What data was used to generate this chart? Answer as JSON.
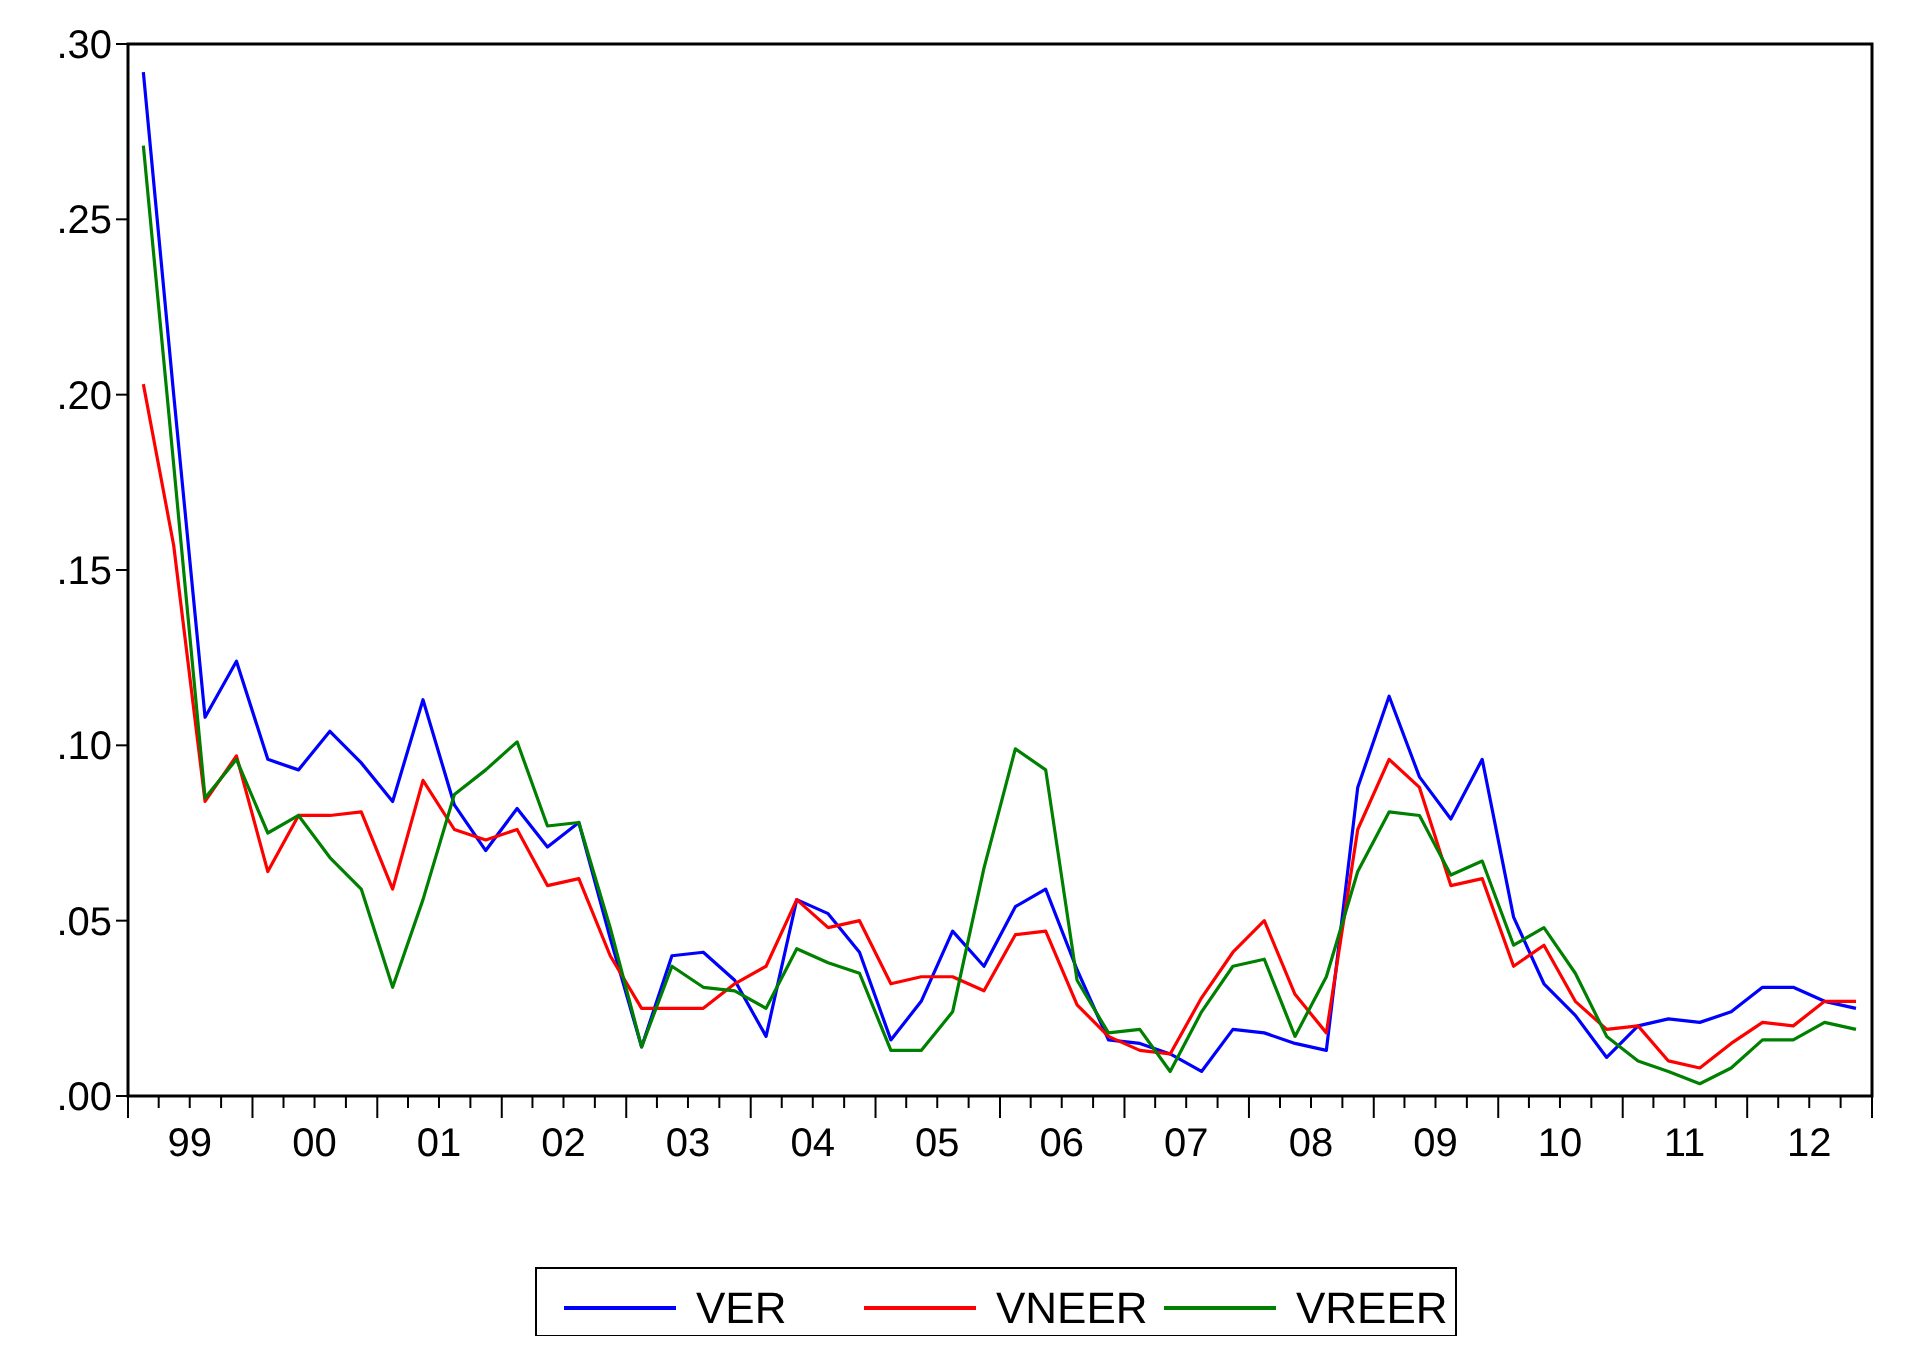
{
  "chart_data": {
    "type": "line",
    "legend": "bottom",
    "grid": false,
    "marker": "none",
    "line_style": "solid",
    "x": [
      "1999-02-15",
      "1999-05-15",
      "1999-08-15",
      "1999-11-15",
      "2000-02-15",
      "2000-05-15",
      "2000-08-15",
      "2000-11-15",
      "2001-02-15",
      "2001-05-15",
      "2001-08-15",
      "2001-11-15",
      "2002-02-15",
      "2002-05-15",
      "2002-08-15",
      "2002-11-15",
      "2003-02-15",
      "2003-05-15",
      "2003-08-15",
      "2003-11-15",
      "2004-02-15",
      "2004-05-15",
      "2004-08-15",
      "2004-11-15",
      "2005-02-15",
      "2005-05-15",
      "2005-08-15",
      "2005-11-15",
      "2006-02-15",
      "2006-05-15",
      "2006-08-15",
      "2006-11-15",
      "2007-02-15",
      "2007-05-15",
      "2007-08-15",
      "2007-11-15",
      "2008-02-15",
      "2008-05-15",
      "2008-08-15",
      "2008-11-15",
      "2009-02-15",
      "2009-05-15",
      "2009-08-15",
      "2009-11-15",
      "2010-02-15",
      "2010-05-15",
      "2010-08-15",
      "2010-11-15",
      "2011-02-15",
      "2011-05-15",
      "2011-08-15",
      "2011-11-15",
      "2012-02-15",
      "2012-05-15",
      "2012-08-15",
      "2012-11-15"
    ],
    "xlim": [
      "1999-01-01",
      "2013-01-01"
    ],
    "xticks": [
      {
        "value": "1999-01-01",
        "label": null
      },
      {
        "value": "1999-04-01",
        "label": null
      },
      {
        "value": "1999-07-01",
        "label": "99"
      },
      {
        "value": "1999-10-01",
        "label": null
      },
      {
        "value": "2000-01-01",
        "label": null
      },
      {
        "value": "2000-04-01",
        "label": null
      },
      {
        "value": "2000-07-01",
        "label": "00"
      },
      {
        "value": "2000-10-01",
        "label": null
      },
      {
        "value": "2001-01-01",
        "label": null
      },
      {
        "value": "2001-04-01",
        "label": null
      },
      {
        "value": "2001-07-01",
        "label": "01"
      },
      {
        "value": "2001-10-01",
        "label": null
      },
      {
        "value": "2002-01-01",
        "label": null
      },
      {
        "value": "2002-04-01",
        "label": null
      },
      {
        "value": "2002-07-01",
        "label": "02"
      },
      {
        "value": "2002-10-01",
        "label": null
      },
      {
        "value": "2003-01-01",
        "label": null
      },
      {
        "value": "2003-04-01",
        "label": null
      },
      {
        "value": "2003-07-01",
        "label": "03"
      },
      {
        "value": "2003-10-01",
        "label": null
      },
      {
        "value": "2004-01-01",
        "label": null
      },
      {
        "value": "2004-04-01",
        "label": null
      },
      {
        "value": "2004-07-01",
        "label": "04"
      },
      {
        "value": "2004-10-01",
        "label": null
      },
      {
        "value": "2005-01-01",
        "label": null
      },
      {
        "value": "2005-04-01",
        "label": null
      },
      {
        "value": "2005-07-01",
        "label": "05"
      },
      {
        "value": "2005-10-01",
        "label": null
      },
      {
        "value": "2006-01-01",
        "label": null
      },
      {
        "value": "2006-04-01",
        "label": null
      },
      {
        "value": "2006-07-01",
        "label": "06"
      },
      {
        "value": "2006-10-01",
        "label": null
      },
      {
        "value": "2007-01-01",
        "label": null
      },
      {
        "value": "2007-04-01",
        "label": null
      },
      {
        "value": "2007-07-01",
        "label": "07"
      },
      {
        "value": "2007-10-01",
        "label": null
      },
      {
        "value": "2008-01-01",
        "label": null
      },
      {
        "value": "2008-04-01",
        "label": null
      },
      {
        "value": "2008-07-01",
        "label": "08"
      },
      {
        "value": "2008-10-01",
        "label": null
      },
      {
        "value": "2009-01-01",
        "label": null
      },
      {
        "value": "2009-04-01",
        "label": null
      },
      {
        "value": "2009-07-01",
        "label": "09"
      },
      {
        "value": "2009-10-01",
        "label": null
      },
      {
        "value": "2010-01-01",
        "label": null
      },
      {
        "value": "2010-04-01",
        "label": null
      },
      {
        "value": "2010-07-01",
        "label": "10"
      },
      {
        "value": "2010-10-01",
        "label": null
      },
      {
        "value": "2011-01-01",
        "label": null
      },
      {
        "value": "2011-04-01",
        "label": null
      },
      {
        "value": "2011-07-01",
        "label": "11"
      },
      {
        "value": "2011-10-01",
        "label": null
      },
      {
        "value": "2012-01-01",
        "label": null
      },
      {
        "value": "2012-04-01",
        "label": null
      },
      {
        "value": "2012-07-01",
        "label": "12"
      },
      {
        "value": "2012-10-01",
        "label": null
      },
      {
        "value": "2013-01-01",
        "label": null
      }
    ],
    "ylim": [
      0,
      0.3
    ],
    "yticks": [
      {
        "value": 0,
        "label": ".00"
      },
      {
        "value": 0.05,
        "label": ".05"
      },
      {
        "value": 0.1,
        "label": ".10"
      },
      {
        "value": 0.15,
        "label": ".15"
      },
      {
        "value": 0.2,
        "label": ".20"
      },
      {
        "value": 0.25,
        "label": ".25"
      },
      {
        "value": 0.3,
        "label": ".30"
      }
    ],
    "series": [
      {
        "name": "VER",
        "color": "#0000ff",
        "values": [
          0.292,
          0.2,
          0.108,
          0.124,
          0.096,
          0.093,
          0.104,
          0.095,
          0.084,
          0.113,
          0.083,
          0.07,
          0.082,
          0.071,
          0.078,
          0.045,
          0.014,
          0.04,
          0.041,
          0.033,
          0.017,
          0.056,
          0.052,
          0.041,
          0.016,
          0.027,
          0.047,
          0.037,
          0.054,
          0.059,
          0.036,
          0.016,
          0.015,
          0.012,
          0.007,
          0.019,
          0.018,
          0.015,
          0.013,
          0.088,
          0.114,
          0.091,
          0.079,
          0.096,
          0.051,
          0.032,
          0.023,
          0.011,
          0.02,
          0.022,
          0.021,
          0.024,
          0.031,
          0.031,
          0.027,
          0.025
        ]
      },
      {
        "name": "VNEER",
        "color": "#ff0000",
        "values": [
          0.203,
          0.157,
          0.084,
          0.097,
          0.064,
          0.08,
          0.08,
          0.081,
          0.059,
          0.09,
          0.076,
          0.073,
          0.076,
          0.06,
          0.062,
          0.04,
          0.025,
          0.025,
          0.025,
          0.032,
          0.037,
          0.056,
          0.048,
          0.05,
          0.032,
          0.034,
          0.034,
          0.03,
          0.046,
          0.047,
          0.026,
          0.017,
          0.013,
          0.012,
          0.028,
          0.041,
          0.05,
          0.029,
          0.018,
          0.076,
          0.096,
          0.088,
          0.06,
          0.062,
          0.037,
          0.043,
          0.027,
          0.019,
          0.02,
          0.01,
          0.008,
          0.015,
          0.021,
          0.02,
          0.027,
          0.027
        ]
      },
      {
        "name": "VREER",
        "color": "#008000",
        "values": [
          0.271,
          0.18,
          0.085,
          0.096,
          0.075,
          0.08,
          0.068,
          0.059,
          0.031,
          0.056,
          0.086,
          0.093,
          0.101,
          0.077,
          0.078,
          0.048,
          0.014,
          0.037,
          0.031,
          0.03,
          0.025,
          0.042,
          0.038,
          0.035,
          0.013,
          0.013,
          0.024,
          0.065,
          0.099,
          0.093,
          0.033,
          0.018,
          0.019,
          0.007,
          0.024,
          0.037,
          0.039,
          0.017,
          0.034,
          0.064,
          0.081,
          0.08,
          0.063,
          0.067,
          0.043,
          0.048,
          0.035,
          0.017,
          0.01,
          0.007,
          0.0035,
          0.008,
          0.016,
          0.016,
          0.021,
          0.019
        ]
      }
    ]
  }
}
